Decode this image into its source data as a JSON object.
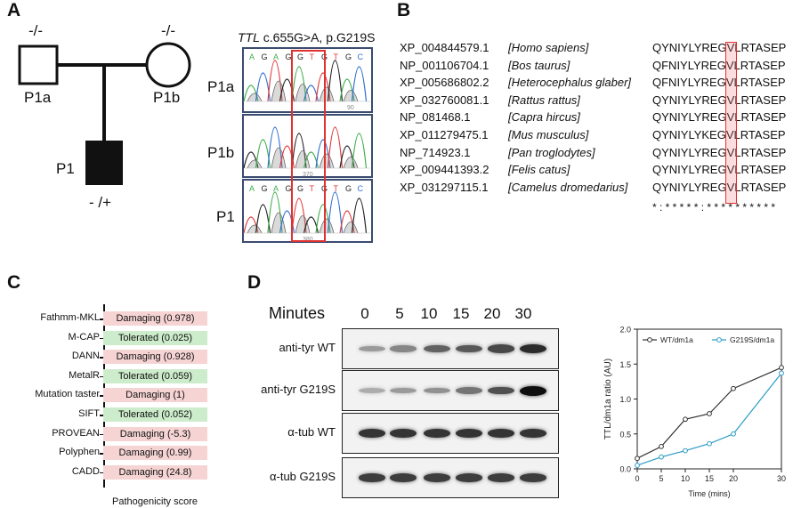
{
  "panels": {
    "a": "A",
    "b": "B",
    "c": "C",
    "d": "D"
  },
  "pedigree": {
    "father_label": "P1a",
    "mother_label": "P1b",
    "child_label": "P1",
    "father_genotype": "-/-",
    "mother_genotype": "-/-",
    "child_genotype": "- /+"
  },
  "chromatogram": {
    "title_gene": "TTL",
    "title_variant": " c.655G>A, p.G219S",
    "rows": [
      {
        "label": "P1a",
        "seq": [
          "A",
          "G",
          "A",
          "G",
          "G",
          "T",
          "G",
          "T",
          "G",
          "C"
        ],
        "pos": "90"
      },
      {
        "label": "P1b",
        "seq": [],
        "pos": "370"
      },
      {
        "label": "P1",
        "seq": [
          "A",
          "G",
          "A",
          "G",
          "G",
          "T",
          "G",
          "T",
          "G",
          "C"
        ],
        "pos": "380"
      }
    ],
    "base_colors": {
      "A": "#3fae49",
      "G": "#222222",
      "T": "#e03a3a",
      "C": "#2f6fd0"
    }
  },
  "alignment": {
    "rows": [
      {
        "acc": "XP_004844579.1",
        "species": "[Homo sapiens]",
        "pre": "QYNIYLYRE",
        "mid": "G",
        "post": "VLRTASEP"
      },
      {
        "acc": "NP_001106704.1",
        "species": "[Bos taurus]",
        "pre": "QFNIYLYRE",
        "mid": "G",
        "post": "VLRTASEP"
      },
      {
        "acc": "XP_005686802.2",
        "species": "[Heterocephalus glaber]",
        "pre": "QFNIYLYRE",
        "mid": "G",
        "post": "VLRTASEP"
      },
      {
        "acc": "XP_032760081.1",
        "species": "[Rattus rattus]",
        "pre": "QYNIYLYRE",
        "mid": "G",
        "post": "VLRTASEP"
      },
      {
        "acc": "NP_081468.1",
        "species": "[Capra hircus]",
        "pre": "QYNIYLYRE",
        "mid": "G",
        "post": "VLRTASEP"
      },
      {
        "acc": "XP_011279475.1",
        "species": "[Mus musculus]",
        "pre": "QYNIYLYKE",
        "mid": "G",
        "post": "VLRTASEP"
      },
      {
        "acc": "NP_714923.1",
        "species": "[Pan troglodytes]",
        "pre": "QYNIYLYRE",
        "mid": "G",
        "post": "VLRTASEP"
      },
      {
        "acc": "XP_009441393.2",
        "species": "[Felis catus]",
        "pre": "QYNIYLYRE",
        "mid": "G",
        "post": "VLRTASEP"
      },
      {
        "acc": "XP_031297115.1",
        "species": "[Camelus dromedarius]",
        "pre": "QYNIYLYRE",
        "mid": "G",
        "post": "VLRTASEP"
      }
    ],
    "consensus": "* : * * * * * : * * * * * * * * * *"
  },
  "pathogenicity": {
    "xlabel": "Pathogenicity score",
    "tools": [
      {
        "name": "Fathmm-MKL",
        "result": "Damaging (0.978)",
        "class": "dmg"
      },
      {
        "name": "M-CAP",
        "result": "Tolerated (0.025)",
        "class": "tol"
      },
      {
        "name": "DANN",
        "result": "Damaging (0.928)",
        "class": "dmg"
      },
      {
        "name": "MetalR",
        "result": "Tolerated (0.059)",
        "class": "tol"
      },
      {
        "name": "Mutation taster",
        "result": "Damaging (1)",
        "class": "dmg"
      },
      {
        "name": "SIFT",
        "result": "Tolerated (0.052)",
        "class": "tol"
      },
      {
        "name": "PROVEAN",
        "result": "Damaging (-5.3)",
        "class": "dmg"
      },
      {
        "name": "Polyphen",
        "result": "Damaging (0.99)",
        "class": "dmg"
      },
      {
        "name": "CADD",
        "result": "Damaging (24.8)",
        "class": "dmg"
      }
    ],
    "colors": {
      "damaging": "#f6d4d4",
      "tolerated": "#cdeccb"
    }
  },
  "blot": {
    "minutes_label": "Minutes",
    "timepoints": [
      "0",
      "5",
      "10",
      "15",
      "20",
      "30"
    ],
    "rows": [
      {
        "label": "anti-tyr WT",
        "intensity": [
          0.25,
          0.35,
          0.55,
          0.6,
          0.7,
          0.85
        ]
      },
      {
        "label": "anti-tyr G219S",
        "intensity": [
          0.15,
          0.25,
          0.3,
          0.45,
          0.65,
          1.0
        ]
      },
      {
        "label": "α-tub WT",
        "intensity": [
          0.8,
          0.8,
          0.8,
          0.8,
          0.8,
          0.8
        ]
      },
      {
        "label": "α-tub G219S",
        "intensity": [
          0.75,
          0.75,
          0.75,
          0.75,
          0.75,
          0.75
        ]
      }
    ]
  },
  "chart_data": {
    "type": "line",
    "x": [
      0,
      5,
      10,
      15,
      20,
      30
    ],
    "xtick_labels": [
      "0",
      "5",
      "10",
      "15",
      "20",
      "30"
    ],
    "ytick_labels": [
      "0.0",
      "0.5",
      "1.0",
      "1.5",
      "2.0"
    ],
    "xlabel": "Time (mins)",
    "ylabel": "TTL/dm1a ratio (AU)",
    "ylim": [
      0,
      2.0
    ],
    "legend": "top",
    "series": [
      {
        "name": "WT/dm1a",
        "values": [
          0.15,
          0.32,
          0.71,
          0.79,
          1.15,
          1.45
        ],
        "color": "#333333"
      },
      {
        "name": "G219S/dm1a",
        "values": [
          0.05,
          0.17,
          0.26,
          0.36,
          0.5,
          1.37
        ],
        "color": "#2a9bc4"
      }
    ]
  }
}
